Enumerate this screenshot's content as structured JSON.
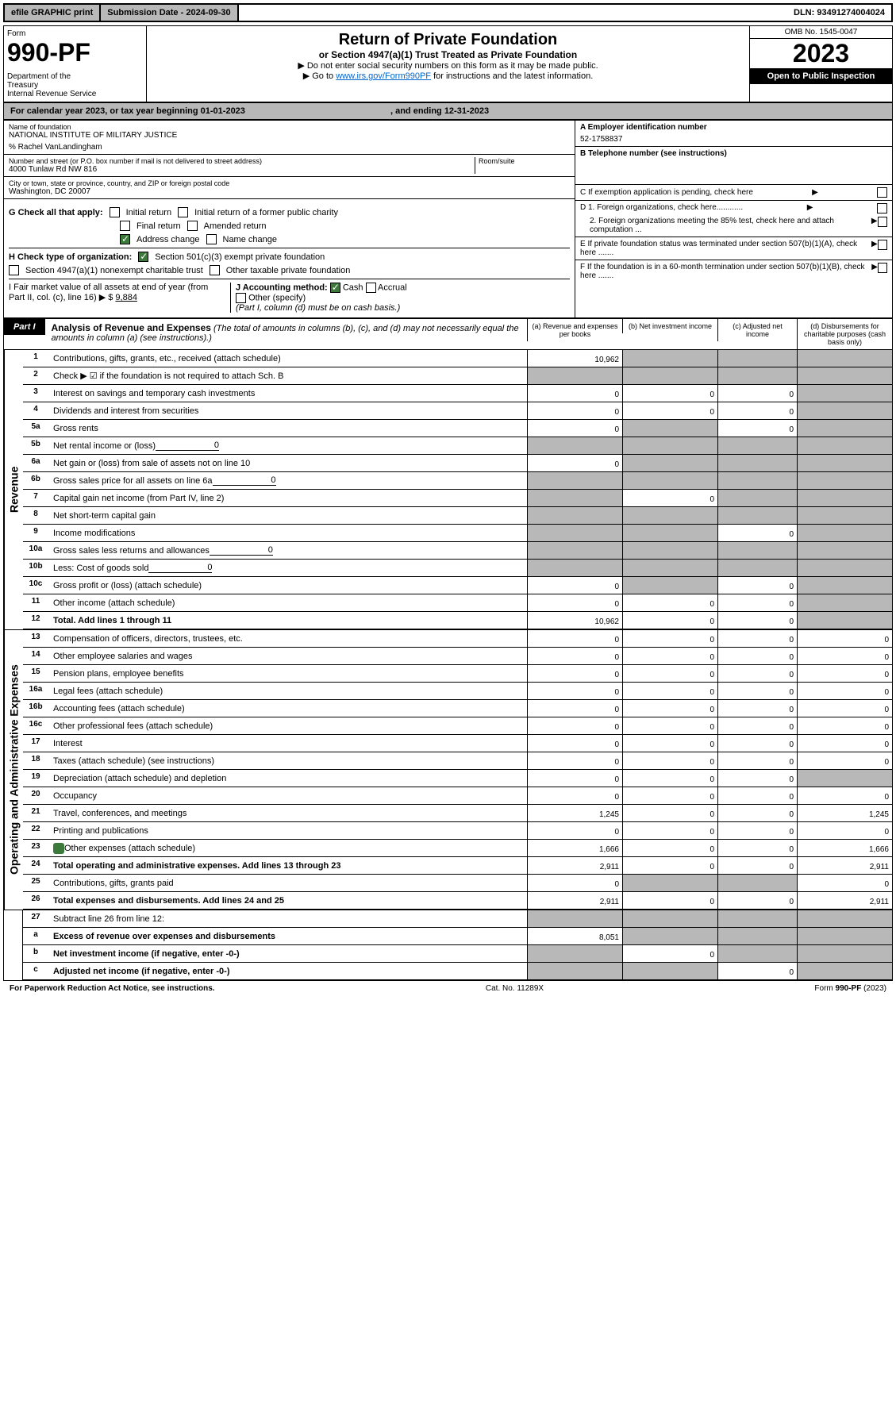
{
  "topbar": {
    "efile": "efile GRAPHIC print",
    "subdate_label": "Submission Date - ",
    "subdate": "2024-09-30",
    "dln_label": "DLN: ",
    "dln": "93491274004024"
  },
  "header": {
    "form_label": "Form",
    "form_num": "990-PF",
    "dept": "Department of the Treasury\nInternal Revenue Service",
    "title": "Return of Private Foundation",
    "subtitle": "or Section 4947(a)(1) Trust Treated as Private Foundation",
    "instr1": "▶ Do not enter social security numbers on this form as it may be made public.",
    "instr2_pre": "▶ Go to ",
    "instr2_link": "www.irs.gov/Form990PF",
    "instr2_post": " for instructions and the latest information.",
    "omb": "OMB No. 1545-0047",
    "year": "2023",
    "open": "Open to Public Inspection"
  },
  "calyear": {
    "text": "For calendar year 2023, or tax year beginning 01-01-2023",
    "ending": ", and ending 12-31-2023"
  },
  "info": {
    "name_label": "Name of foundation",
    "name": "NATIONAL INSTITUTE OF MILITARY JUSTICE",
    "co": "% Rachel VanLandingham",
    "addr_label": "Number and street (or P.O. box number if mail is not delivered to street address)",
    "addr": "4000 Tunlaw Rd NW 816",
    "room_label": "Room/suite",
    "city_label": "City or town, state or province, country, and ZIP or foreign postal code",
    "city": "Washington, DC  20007",
    "ein_label": "A Employer identification number",
    "ein": "52-1758837",
    "phone_label": "B Telephone number (see instructions)",
    "c_label": "C If exemption application is pending, check here",
    "d1_label": "D 1. Foreign organizations, check here............",
    "d2_label": "2. Foreign organizations meeting the 85% test, check here and attach computation ...",
    "e_label": "E  If private foundation status was terminated under section 507(b)(1)(A), check here .......",
    "f_label": "F  If the foundation is in a 60-month termination under section 507(b)(1)(B), check here .......",
    "g_label": "G Check all that apply:",
    "g_opts": [
      "Initial return",
      "Initial return of a former public charity",
      "Final return",
      "Amended return",
      "Address change",
      "Name change"
    ],
    "h_label": "H Check type of organization:",
    "h_opts": [
      "Section 501(c)(3) exempt private foundation",
      "Section 4947(a)(1) nonexempt charitable trust",
      "Other taxable private foundation"
    ],
    "i_label": "I Fair market value of all assets at end of year (from Part II, col. (c), line 16) ▶ $",
    "i_val": "9,884",
    "j_label": "J Accounting method:",
    "j_cash": "Cash",
    "j_accrual": "Accrual",
    "j_other": "Other (specify)",
    "j_note": "(Part I, column (d) must be on cash basis.)"
  },
  "part1": {
    "label": "Part I",
    "title": "Analysis of Revenue and Expenses",
    "note": "(The total of amounts in columns (b), (c), and (d) may not necessarily equal the amounts in column (a) (see instructions).)",
    "col_a": "(a) Revenue and expenses per books",
    "col_b": "(b) Net investment income",
    "col_c": "(c) Adjusted net income",
    "col_d": "(d) Disbursements for charitable purposes (cash basis only)"
  },
  "side_revenue": "Revenue",
  "side_expenses": "Operating and Administrative Expenses",
  "lines": {
    "1": {
      "label": "Contributions, gifts, grants, etc., received (attach schedule)",
      "a": "10,962"
    },
    "2": {
      "label": "Check ▶ ☑ if the foundation is not required to attach Sch. B"
    },
    "3": {
      "label": "Interest on savings and temporary cash investments",
      "a": "0",
      "b": "0",
      "c": "0"
    },
    "4": {
      "label": "Dividends and interest from securities",
      "a": "0",
      "b": "0",
      "c": "0"
    },
    "5a": {
      "label": "Gross rents",
      "a": "0",
      "c": "0"
    },
    "5b": {
      "label": "Net rental income or (loss)",
      "inline": "0"
    },
    "6a": {
      "label": "Net gain or (loss) from sale of assets not on line 10",
      "a": "0"
    },
    "6b": {
      "label": "Gross sales price for all assets on line 6a",
      "inline": "0"
    },
    "7": {
      "label": "Capital gain net income (from Part IV, line 2)",
      "b": "0"
    },
    "8": {
      "label": "Net short-term capital gain"
    },
    "9": {
      "label": "Income modifications",
      "c": "0"
    },
    "10a": {
      "label": "Gross sales less returns and allowances",
      "inline": "0"
    },
    "10b": {
      "label": "Less: Cost of goods sold",
      "inline": "0"
    },
    "10c": {
      "label": "Gross profit or (loss) (attach schedule)",
      "a": "0",
      "c": "0"
    },
    "11": {
      "label": "Other income (attach schedule)",
      "a": "0",
      "b": "0",
      "c": "0"
    },
    "12": {
      "label": "Total. Add lines 1 through 11",
      "a": "10,962",
      "b": "0",
      "c": "0"
    },
    "13": {
      "label": "Compensation of officers, directors, trustees, etc.",
      "a": "0",
      "b": "0",
      "c": "0",
      "d": "0"
    },
    "14": {
      "label": "Other employee salaries and wages",
      "a": "0",
      "b": "0",
      "c": "0",
      "d": "0"
    },
    "15": {
      "label": "Pension plans, employee benefits",
      "a": "0",
      "b": "0",
      "c": "0",
      "d": "0"
    },
    "16a": {
      "label": "Legal fees (attach schedule)",
      "a": "0",
      "b": "0",
      "c": "0",
      "d": "0"
    },
    "16b": {
      "label": "Accounting fees (attach schedule)",
      "a": "0",
      "b": "0",
      "c": "0",
      "d": "0"
    },
    "16c": {
      "label": "Other professional fees (attach schedule)",
      "a": "0",
      "b": "0",
      "c": "0",
      "d": "0"
    },
    "17": {
      "label": "Interest",
      "a": "0",
      "b": "0",
      "c": "0",
      "d": "0"
    },
    "18": {
      "label": "Taxes (attach schedule) (see instructions)",
      "a": "0",
      "b": "0",
      "c": "0",
      "d": "0"
    },
    "19": {
      "label": "Depreciation (attach schedule) and depletion",
      "a": "0",
      "b": "0",
      "c": "0"
    },
    "20": {
      "label": "Occupancy",
      "a": "0",
      "b": "0",
      "c": "0",
      "d": "0"
    },
    "21": {
      "label": "Travel, conferences, and meetings",
      "a": "1,245",
      "b": "0",
      "c": "0",
      "d": "1,245"
    },
    "22": {
      "label": "Printing and publications",
      "a": "0",
      "b": "0",
      "c": "0",
      "d": "0"
    },
    "23": {
      "label": "Other expenses (attach schedule)",
      "a": "1,666",
      "b": "0",
      "c": "0",
      "d": "1,666",
      "icon": true
    },
    "24": {
      "label": "Total operating and administrative expenses. Add lines 13 through 23",
      "a": "2,911",
      "b": "0",
      "c": "0",
      "d": "2,911"
    },
    "25": {
      "label": "Contributions, gifts, grants paid",
      "a": "0",
      "d": "0"
    },
    "26": {
      "label": "Total expenses and disbursements. Add lines 24 and 25",
      "a": "2,911",
      "b": "0",
      "c": "0",
      "d": "2,911"
    },
    "27": {
      "label": "Subtract line 26 from line 12:"
    },
    "27a": {
      "label": "Excess of revenue over expenses and disbursements",
      "a": "8,051"
    },
    "27b": {
      "label": "Net investment income (if negative, enter -0-)",
      "b": "0"
    },
    "27c": {
      "label": "Adjusted net income (if negative, enter -0-)",
      "c": "0"
    }
  },
  "footer": {
    "left": "For Paperwork Reduction Act Notice, see instructions.",
    "center": "Cat. No. 11289X",
    "right": "Form 990-PF (2023)"
  }
}
